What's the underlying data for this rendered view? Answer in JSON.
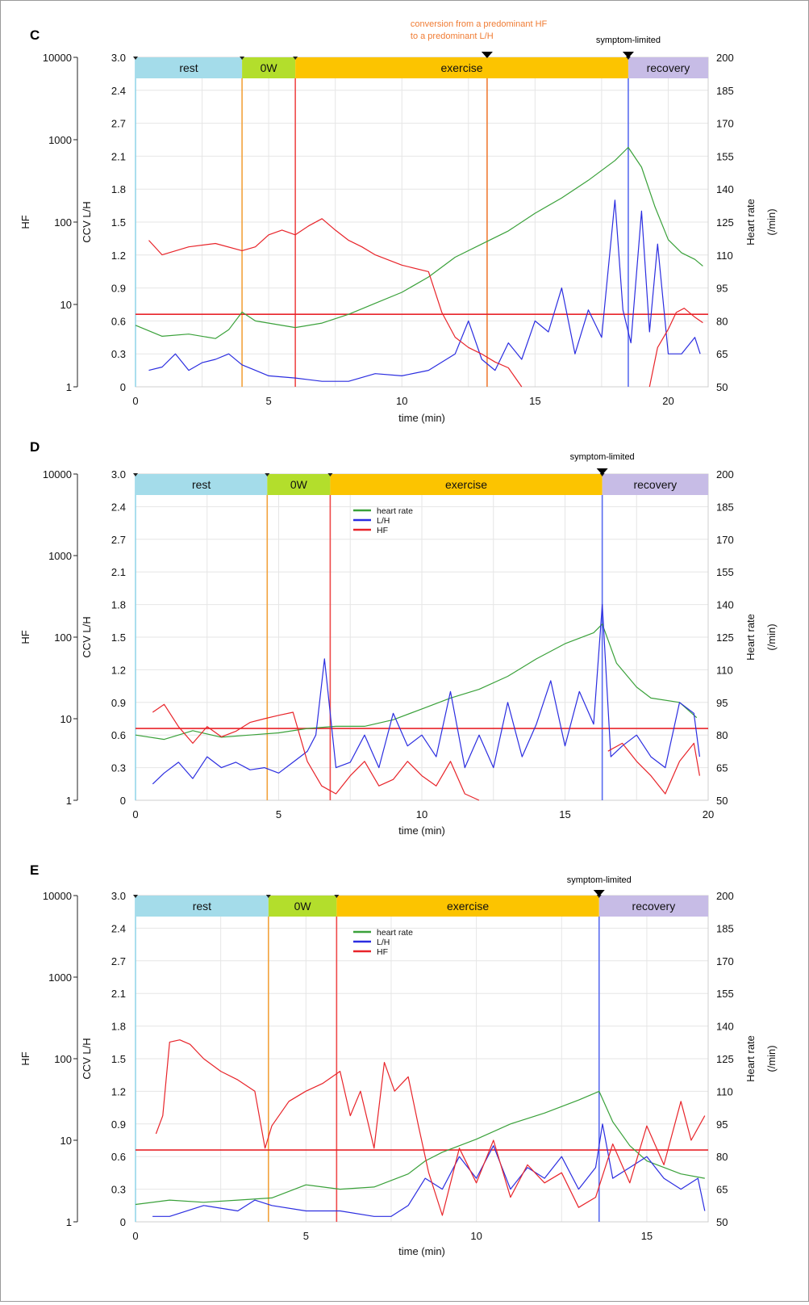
{
  "chart_data": [
    {
      "panel": "C",
      "type": "line",
      "xlabel": "time (min)",
      "xlim": [
        0,
        21.5
      ],
      "xticks": [
        0,
        5,
        10,
        15,
        20
      ],
      "left_axis_hf": {
        "label": "HF",
        "scale": "log",
        "ticks": [
          "10000",
          "1000",
          "100",
          "10",
          "1"
        ]
      },
      "left_axis_lh": {
        "label": "CCV L/H",
        "ticks": [
          "3.0",
          "2.4",
          "2.7",
          "2.1",
          "1.8",
          "1.5",
          "1.2",
          "0.9",
          "0.6",
          "0.3",
          "0"
        ]
      },
      "right_axis": {
        "label": "Heart rate\n(/min)",
        "ylim": [
          50,
          200
        ],
        "ticks": [
          "200",
          "185",
          "170",
          "155",
          "140",
          "125",
          "110",
          "95",
          "80",
          "65",
          "50"
        ]
      },
      "phases": [
        {
          "label": "rest",
          "start": 0,
          "end": 4.0,
          "color": "#a4dcea"
        },
        {
          "label": "0W",
          "start": 4.0,
          "end": 6.0,
          "color": "#b3de2c"
        },
        {
          "label": "exercise",
          "start": 6.0,
          "end": 18.5,
          "color": "#fcc400"
        },
        {
          "label": "recovery",
          "start": 18.5,
          "end": 21.5,
          "color": "#c7bce6"
        }
      ],
      "annotations": [
        {
          "text": "conversion from a predominant HF",
          "text2": "to a predominant L/H",
          "x": 13.2,
          "color": "#f07c34"
        },
        {
          "text": "symptom-limited",
          "x": 18.5,
          "color": "#000000"
        }
      ],
      "vlines": [
        {
          "x": 4.0,
          "color": "#f2a23c"
        },
        {
          "x": 6.0,
          "color": "#ef4a4a"
        },
        {
          "x": 13.2,
          "color": "#f07c34"
        },
        {
          "x": 18.5,
          "color": "#5a6cf0"
        }
      ],
      "hline": {
        "hf": 7.6,
        "color": "#e8242a"
      },
      "legend": null,
      "series": [
        {
          "axis": "hr",
          "color": "#3aa13a",
          "x": [
            0,
            1,
            2,
            3,
            3.5,
            4,
            4.5,
            5,
            6,
            7,
            8,
            9,
            10,
            11,
            12,
            13,
            14,
            15,
            16,
            17,
            18,
            18.5,
            19,
            19.5,
            20,
            20.5,
            21,
            21.3
          ],
          "y": [
            78,
            73,
            74,
            72,
            76,
            84,
            80,
            79,
            77,
            79,
            83,
            88,
            93,
            100,
            109,
            115,
            121,
            129,
            136,
            144,
            153,
            159,
            150,
            132,
            117,
            111,
            108,
            105
          ]
        },
        {
          "axis": "lh",
          "color": "#2b2de0",
          "x": [
            0.5,
            1,
            1.5,
            2,
            2.5,
            3,
            3.5,
            4,
            4.5,
            5,
            6,
            7,
            8,
            9,
            10,
            11,
            12,
            12.5,
            13,
            13.5,
            14,
            14.5,
            15,
            15.5,
            16,
            16.5,
            17,
            17.5,
            18,
            18.3,
            18.6,
            19,
            19.3,
            19.6,
            20,
            20.5,
            21,
            21.2
          ],
          "y": [
            0.15,
            0.18,
            0.3,
            0.15,
            0.22,
            0.25,
            0.3,
            0.2,
            0.15,
            0.1,
            0.08,
            0.05,
            0.05,
            0.12,
            0.1,
            0.15,
            0.3,
            0.6,
            0.25,
            0.15,
            0.4,
            0.25,
            0.6,
            0.5,
            0.9,
            0.3,
            0.7,
            0.45,
            1.7,
            0.7,
            0.4,
            1.6,
            0.5,
            1.3,
            0.3,
            0.3,
            0.45,
            0.3
          ]
        },
        {
          "axis": "hf",
          "color": "#e8242a",
          "x": [
            0.5,
            1,
            2,
            3,
            4,
            4.5,
            5,
            5.5,
            6,
            6.5,
            7,
            7.5,
            8,
            8.5,
            9,
            10,
            11,
            11.5,
            12,
            12.5,
            13,
            13.5,
            14,
            14.5
          ],
          "y": [
            60,
            40,
            50,
            55,
            45,
            50,
            70,
            80,
            70,
            90,
            110,
            80,
            60,
            50,
            40,
            30,
            25,
            8,
            4,
            3,
            2.5,
            2,
            1.7,
            1
          ],
          "x2": [
            19.3,
            19.6,
            20,
            20.3,
            20.6,
            21,
            21.3
          ],
          "y2": [
            1,
            3,
            5,
            8,
            9,
            7,
            6
          ]
        }
      ]
    },
    {
      "panel": "D",
      "type": "line",
      "xlabel": "time (min)",
      "xlim": [
        0,
        20
      ],
      "xticks": [
        0,
        5,
        10,
        15,
        20
      ],
      "left_axis_hf": {
        "label": "HF",
        "scale": "log",
        "ticks": [
          "10000",
          "1000",
          "100",
          "10",
          "1"
        ]
      },
      "left_axis_lh": {
        "label": "CCV L/H",
        "ticks": [
          "3.0",
          "2.4",
          "2.7",
          "2.1",
          "1.8",
          "1.5",
          "1.2",
          "0.9",
          "0.6",
          "0.3",
          "0"
        ]
      },
      "right_axis": {
        "label": "Heart rate\n(/min)",
        "ylim": [
          50,
          200
        ],
        "ticks": [
          "200",
          "185",
          "170",
          "155",
          "140",
          "125",
          "110",
          "95",
          "80",
          "65",
          "50"
        ]
      },
      "phases": [
        {
          "label": "rest",
          "start": 0,
          "end": 4.6,
          "color": "#a4dcea"
        },
        {
          "label": "0W",
          "start": 4.6,
          "end": 6.8,
          "color": "#b3de2c"
        },
        {
          "label": "exercise",
          "start": 6.8,
          "end": 16.3,
          "color": "#fcc400"
        },
        {
          "label": "recovery",
          "start": 16.3,
          "end": 20,
          "color": "#c7bce6"
        }
      ],
      "annotations": [
        {
          "text": "symptom-limited",
          "x": 16.3,
          "color": "#000000"
        }
      ],
      "vlines": [
        {
          "x": 4.6,
          "color": "#f2a23c"
        },
        {
          "x": 6.8,
          "color": "#ef4a4a"
        },
        {
          "x": 16.3,
          "color": "#5a6cf0"
        }
      ],
      "hline": {
        "hf": 7.6,
        "color": "#e8242a"
      },
      "legend": [
        {
          "label": "heart rate",
          "color": "#3aa13a"
        },
        {
          "label": "L/H",
          "color": "#2b2de0"
        },
        {
          "label": "HF",
          "color": "#e8242a"
        }
      ],
      "series": [
        {
          "axis": "hr",
          "color": "#3aa13a",
          "x": [
            0,
            1,
            2,
            3,
            4,
            5,
            6,
            7,
            8,
            9,
            10,
            11,
            12,
            13,
            14,
            15,
            16,
            16.3,
            16.8,
            17.5,
            18,
            19,
            19.6
          ],
          "y": [
            80,
            78,
            82,
            79,
            80,
            81,
            83,
            84,
            84,
            87,
            92,
            97,
            101,
            107,
            115,
            122,
            127,
            131,
            113,
            102,
            97,
            95,
            88
          ]
        },
        {
          "axis": "lh",
          "color": "#2b2de0",
          "x": [
            0.6,
            1,
            1.5,
            2,
            2.5,
            3,
            3.5,
            4,
            4.5,
            5,
            5.5,
            6,
            6.3,
            6.6,
            7,
            7.5,
            8,
            8.5,
            9,
            9.5,
            10,
            10.5,
            11,
            11.5,
            12,
            12.5,
            13,
            13.5,
            14,
            14.5,
            15,
            15.5,
            16,
            16.3,
            16.6,
            17,
            17.5,
            18,
            18.5,
            19,
            19.5,
            19.7
          ],
          "y": [
            0.15,
            0.25,
            0.35,
            0.2,
            0.4,
            0.3,
            0.35,
            0.28,
            0.3,
            0.25,
            0.35,
            0.45,
            0.6,
            1.3,
            0.3,
            0.35,
            0.6,
            0.3,
            0.8,
            0.5,
            0.6,
            0.4,
            1.0,
            0.3,
            0.6,
            0.3,
            0.9,
            0.4,
            0.7,
            1.1,
            0.5,
            1.0,
            0.7,
            1.8,
            0.4,
            0.5,
            0.6,
            0.4,
            0.3,
            0.9,
            0.8,
            0.4
          ]
        },
        {
          "axis": "hf",
          "color": "#e8242a",
          "x": [
            0.6,
            1,
            1.5,
            2,
            2.5,
            3,
            3.5,
            4,
            4.5,
            5,
            5.5,
            6,
            6.5,
            7,
            7.5,
            8,
            8.5,
            9,
            9.5,
            10,
            10.5,
            11,
            11.5,
            12
          ],
          "y": [
            12,
            15,
            8,
            5,
            8,
            6,
            7,
            9,
            10,
            11,
            12,
            3,
            1.5,
            1.2,
            2,
            3,
            1.5,
            1.8,
            3,
            2,
            1.5,
            3,
            1.2,
            1
          ],
          "x2": [
            16.5,
            17,
            17.5,
            18,
            18.5,
            19,
            19.5,
            19.7
          ],
          "y2": [
            4,
            5,
            3,
            2,
            1.2,
            3,
            5,
            2
          ]
        }
      ]
    },
    {
      "panel": "E",
      "type": "line",
      "xlabel": "time (min)",
      "xlim": [
        0,
        16.8
      ],
      "xticks": [
        0,
        5,
        10,
        15
      ],
      "left_axis_hf": {
        "label": "HF",
        "scale": "log",
        "ticks": [
          "10000",
          "1000",
          "100",
          "10",
          "1"
        ]
      },
      "left_axis_lh": {
        "label": "CCV L/H",
        "ticks": [
          "3.0",
          "2.4",
          "2.7",
          "2.1",
          "1.8",
          "1.5",
          "1.2",
          "0.9",
          "0.6",
          "0.3",
          "0"
        ]
      },
      "right_axis": {
        "label": "Heart rate\n(/min)",
        "ylim": [
          50,
          200
        ],
        "ticks": [
          "200",
          "185",
          "170",
          "155",
          "140",
          "125",
          "110",
          "95",
          "80",
          "65",
          "50"
        ]
      },
      "phases": [
        {
          "label": "rest",
          "start": 0,
          "end": 3.9,
          "color": "#a4dcea"
        },
        {
          "label": "0W",
          "start": 3.9,
          "end": 5.9,
          "color": "#b3de2c"
        },
        {
          "label": "exercise",
          "start": 5.9,
          "end": 13.6,
          "color": "#fcc400"
        },
        {
          "label": "recovery",
          "start": 13.6,
          "end": 16.8,
          "color": "#c7bce6"
        }
      ],
      "annotations": [
        {
          "text": "symptom-limited",
          "x": 13.6,
          "color": "#000000"
        }
      ],
      "vlines": [
        {
          "x": 3.9,
          "color": "#f2a23c"
        },
        {
          "x": 5.9,
          "color": "#ef4a4a"
        },
        {
          "x": 13.6,
          "color": "#5a6cf0"
        }
      ],
      "hline": {
        "hf": 7.6,
        "color": "#e8242a"
      },
      "legend": [
        {
          "label": "heart rate",
          "color": "#3aa13a"
        },
        {
          "label": "L/H",
          "color": "#2b2de0"
        },
        {
          "label": "HF",
          "color": "#e8242a"
        }
      ],
      "series": [
        {
          "axis": "hr",
          "color": "#3aa13a",
          "x": [
            0,
            1,
            2,
            3,
            4,
            5,
            6,
            7,
            8,
            8.5,
            9,
            10,
            11,
            12,
            13,
            13.6,
            14,
            14.5,
            15,
            16,
            16.7
          ],
          "y": [
            58,
            60,
            59,
            60,
            61,
            67,
            65,
            66,
            72,
            78,
            82,
            88,
            95,
            100,
            106,
            110,
            96,
            85,
            78,
            72,
            70
          ]
        },
        {
          "axis": "lh",
          "color": "#2b2de0",
          "x": [
            0.5,
            1,
            2,
            3,
            3.5,
            4,
            5,
            6,
            7,
            7.5,
            8,
            8.5,
            9,
            9.5,
            10,
            10.5,
            11,
            11.5,
            12,
            12.5,
            13,
            13.5,
            13.7,
            14,
            14.5,
            15,
            15.5,
            16,
            16.5,
            16.7
          ],
          "y": [
            0.05,
            0.05,
            0.15,
            0.1,
            0.2,
            0.15,
            0.1,
            0.1,
            0.05,
            0.05,
            0.15,
            0.4,
            0.3,
            0.6,
            0.4,
            0.7,
            0.3,
            0.5,
            0.4,
            0.6,
            0.3,
            0.5,
            0.9,
            0.4,
            0.5,
            0.6,
            0.4,
            0.3,
            0.4,
            0.1
          ]
        },
        {
          "axis": "hf",
          "color": "#e8242a",
          "x": [
            0.6,
            0.8,
            1.0,
            1.3,
            1.6,
            2,
            2.5,
            3,
            3.5,
            3.8,
            4,
            4.5,
            5,
            5.5,
            6,
            6.3,
            6.6,
            7,
            7.3,
            7.6,
            8,
            8.3,
            8.6,
            9,
            9.5,
            10,
            10.5,
            11,
            11.5,
            12,
            12.5,
            13,
            13.5,
            14,
            14.5,
            15,
            15.5,
            16,
            16.3,
            16.7
          ],
          "y": [
            12,
            20,
            160,
            170,
            150,
            100,
            70,
            55,
            40,
            8,
            15,
            30,
            40,
            50,
            70,
            20,
            40,
            8,
            90,
            40,
            60,
            15,
            4,
            1.2,
            8,
            3,
            10,
            2,
            5,
            3,
            4,
            1.5,
            2,
            9,
            3,
            15,
            5,
            30,
            10,
            20
          ]
        }
      ]
    }
  ],
  "panels_text": {
    "C": "C",
    "D": "D",
    "E": "E"
  }
}
